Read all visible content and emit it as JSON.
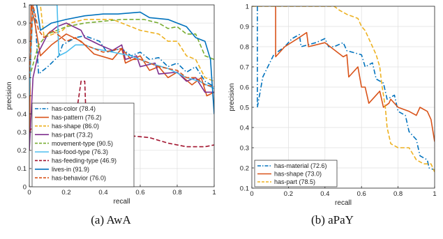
{
  "colors": {
    "blue": "#0072bd",
    "orange": "#d95319",
    "yellow": "#edb120",
    "purple": "#7e2f8e",
    "green": "#77ac30",
    "cyan": "#4dbeee",
    "maroon": "#a2142f",
    "grid": "#dfdfdf",
    "axis": "#262626"
  },
  "chart_data": [
    {
      "id": "awa",
      "type": "line",
      "caption": "(a) AwA",
      "xlabel": "recall",
      "ylabel": "precision",
      "xlim": [
        0,
        1
      ],
      "ylim": [
        0,
        1
      ],
      "x_ticks": [
        0,
        0.2,
        0.4,
        0.6,
        0.8,
        1
      ],
      "y_ticks": [
        0,
        0.1,
        0.2,
        0.3,
        0.4,
        0.5,
        0.6,
        0.7,
        0.8,
        0.9,
        1
      ],
      "x_tick_labels": [
        "0",
        "0.2",
        "0.4",
        "0.6",
        "0.8",
        "1"
      ],
      "y_tick_labels": [
        "0",
        "0.1",
        "0.2",
        "0.3",
        "0.4",
        "0.5",
        "0.6",
        "0.7",
        "0.8",
        "0.9",
        "1"
      ],
      "grid": true,
      "legend_position": "bottom-left",
      "series": [
        {
          "name": "has-color (78.4)",
          "color": "blue",
          "dash": "dashdot",
          "points": [
            [
              0,
              0.3
            ],
            [
              0.01,
              1
            ],
            [
              0.03,
              0.95
            ],
            [
              0.05,
              0.62
            ],
            [
              0.1,
              0.66
            ],
            [
              0.16,
              0.72
            ],
            [
              0.18,
              0.78
            ],
            [
              0.25,
              0.82
            ],
            [
              0.3,
              0.83
            ],
            [
              0.38,
              0.8
            ],
            [
              0.42,
              0.74
            ],
            [
              0.5,
              0.76
            ],
            [
              0.55,
              0.72
            ],
            [
              0.6,
              0.74
            ],
            [
              0.65,
              0.7
            ],
            [
              0.7,
              0.71
            ],
            [
              0.75,
              0.66
            ],
            [
              0.8,
              0.68
            ],
            [
              0.85,
              0.63
            ],
            [
              0.9,
              0.66
            ],
            [
              0.95,
              0.58
            ],
            [
              1.0,
              0.55
            ]
          ]
        },
        {
          "name": "has-pattern (76.2)",
          "color": "orange",
          "dash": "solid",
          "points": [
            [
              0,
              0.2
            ],
            [
              0.01,
              1
            ],
            [
              0.03,
              0.9
            ],
            [
              0.06,
              0.72
            ],
            [
              0.12,
              0.78
            ],
            [
              0.2,
              0.84
            ],
            [
              0.28,
              0.8
            ],
            [
              0.35,
              0.73
            ],
            [
              0.45,
              0.7
            ],
            [
              0.5,
              0.76
            ],
            [
              0.52,
              0.68
            ],
            [
              0.6,
              0.72
            ],
            [
              0.65,
              0.64
            ],
            [
              0.7,
              0.66
            ],
            [
              0.75,
              0.6
            ],
            [
              0.8,
              0.63
            ],
            [
              0.88,
              0.56
            ],
            [
              0.93,
              0.6
            ],
            [
              0.96,
              0.5
            ],
            [
              1.0,
              0.52
            ]
          ]
        },
        {
          "name": "has-shape (86.0)",
          "color": "yellow",
          "dash": "dashed",
          "points": [
            [
              0,
              0.5
            ],
            [
              0.02,
              1
            ],
            [
              0.06,
              1
            ],
            [
              0.08,
              0.82
            ],
            [
              0.18,
              0.86
            ],
            [
              0.22,
              0.9
            ],
            [
              0.3,
              0.92
            ],
            [
              0.45,
              0.92
            ],
            [
              0.55,
              0.88
            ],
            [
              0.6,
              0.86
            ],
            [
              0.7,
              0.84
            ],
            [
              0.75,
              0.8
            ],
            [
              0.8,
              0.8
            ],
            [
              0.85,
              0.72
            ],
            [
              0.9,
              0.7
            ],
            [
              0.95,
              0.6
            ],
            [
              1.0,
              0.58
            ]
          ]
        },
        {
          "name": "has-part (73.2)",
          "color": "purple",
          "dash": "solid",
          "points": [
            [
              0,
              0.2
            ],
            [
              0.02,
              0.6
            ],
            [
              0.05,
              0.74
            ],
            [
              0.1,
              0.84
            ],
            [
              0.15,
              0.88
            ],
            [
              0.2,
              0.9
            ],
            [
              0.28,
              0.86
            ],
            [
              0.3,
              0.82
            ],
            [
              0.38,
              0.78
            ],
            [
              0.45,
              0.75
            ],
            [
              0.5,
              0.78
            ],
            [
              0.52,
              0.7
            ],
            [
              0.58,
              0.72
            ],
            [
              0.6,
              0.66
            ],
            [
              0.68,
              0.68
            ],
            [
              0.7,
              0.62
            ],
            [
              0.8,
              0.63
            ],
            [
              0.85,
              0.58
            ],
            [
              0.9,
              0.6
            ],
            [
              0.95,
              0.52
            ],
            [
              1.0,
              0.52
            ]
          ]
        },
        {
          "name": "movement-type (90.5)",
          "color": "green",
          "dash": "dashed",
          "points": [
            [
              0,
              0.6
            ],
            [
              0.05,
              0.78
            ],
            [
              0.1,
              0.84
            ],
            [
              0.2,
              0.88
            ],
            [
              0.3,
              0.9
            ],
            [
              0.4,
              0.91
            ],
            [
              0.5,
              0.92
            ],
            [
              0.62,
              0.92
            ],
            [
              0.7,
              0.9
            ],
            [
              0.75,
              0.87
            ],
            [
              0.8,
              0.88
            ],
            [
              0.85,
              0.84
            ],
            [
              0.9,
              0.84
            ],
            [
              0.95,
              0.72
            ],
            [
              1.0,
              0.7
            ]
          ]
        },
        {
          "name": "has-food-type (76.3)",
          "color": "cyan",
          "dash": "solid",
          "points": [
            [
              0,
              0.5
            ],
            [
              0.02,
              1
            ],
            [
              0.15,
              1
            ],
            [
              0.16,
              0.72
            ],
            [
              0.2,
              0.74
            ],
            [
              0.25,
              0.78
            ],
            [
              0.3,
              0.78
            ],
            [
              0.35,
              0.76
            ],
            [
              0.45,
              0.74
            ],
            [
              0.55,
              0.72
            ],
            [
              0.65,
              0.68
            ],
            [
              0.75,
              0.65
            ],
            [
              0.85,
              0.6
            ],
            [
              0.92,
              0.58
            ],
            [
              1.0,
              0.54
            ]
          ]
        },
        {
          "name": "has-feeding-type (46.9)",
          "color": "maroon",
          "dash": "dashed",
          "points": [
            [
              0,
              0.3
            ],
            [
              0.05,
              0.4
            ],
            [
              0.1,
              0.46
            ],
            [
              0.12,
              0.38
            ],
            [
              0.2,
              0.4
            ],
            [
              0.26,
              0.44
            ],
            [
              0.28,
              0.58
            ],
            [
              0.3,
              0.58
            ],
            [
              0.31,
              0.28
            ],
            [
              0.45,
              0.28
            ],
            [
              0.55,
              0.28
            ],
            [
              0.65,
              0.27
            ],
            [
              0.75,
              0.24
            ],
            [
              0.85,
              0.22
            ],
            [
              0.95,
              0.22
            ],
            [
              1.0,
              0.23
            ]
          ]
        },
        {
          "name": "lives-in (91.9)",
          "color": "blue",
          "dash": "solid",
          "points": [
            [
              0,
              1
            ],
            [
              0.04,
              1
            ],
            [
              0.06,
              0.86
            ],
            [
              0.12,
              0.9
            ],
            [
              0.2,
              0.92
            ],
            [
              0.3,
              0.94
            ],
            [
              0.4,
              0.95
            ],
            [
              0.48,
              0.95
            ],
            [
              0.6,
              0.96
            ],
            [
              0.65,
              0.93
            ],
            [
              0.75,
              0.92
            ],
            [
              0.85,
              0.88
            ],
            [
              0.9,
              0.82
            ],
            [
              0.95,
              0.8
            ],
            [
              0.98,
              0.7
            ],
            [
              1.0,
              0.4
            ]
          ]
        },
        {
          "name": "has-behavior (76.0)",
          "color": "orange",
          "dash": "dashed",
          "points": [
            [
              0,
              0.6
            ],
            [
              0.02,
              1
            ],
            [
              0.05,
              0.86
            ],
            [
              0.08,
              0.82
            ],
            [
              0.12,
              0.86
            ],
            [
              0.15,
              0.84
            ],
            [
              0.2,
              0.8
            ],
            [
              0.25,
              0.82
            ],
            [
              0.3,
              0.78
            ],
            [
              0.4,
              0.74
            ],
            [
              0.5,
              0.76
            ],
            [
              0.55,
              0.7
            ],
            [
              0.6,
              0.7
            ],
            [
              0.7,
              0.66
            ],
            [
              0.8,
              0.64
            ],
            [
              0.85,
              0.6
            ],
            [
              0.9,
              0.6
            ],
            [
              0.95,
              0.56
            ],
            [
              1.0,
              0.55
            ]
          ]
        }
      ]
    },
    {
      "id": "apay",
      "type": "line",
      "caption": "(b) aPaY",
      "xlabel": "recall",
      "ylabel": "precision",
      "xlim": [
        0,
        1
      ],
      "ylim": [
        0.1,
        1
      ],
      "x_ticks": [
        0,
        0.2,
        0.4,
        0.6,
        0.8,
        1
      ],
      "y_ticks": [
        0.1,
        0.2,
        0.3,
        0.4,
        0.5,
        0.6,
        0.7,
        0.8,
        0.9,
        1
      ],
      "x_tick_labels": [
        "0",
        "0.2",
        "0.4",
        "0.6",
        "0.8",
        "1"
      ],
      "y_tick_labels": [
        "0.1",
        "0.2",
        "0.3",
        "0.4",
        "0.5",
        "0.6",
        "0.7",
        "0.8",
        "0.9",
        "1"
      ],
      "grid": true,
      "legend_position": "bottom-left",
      "series": [
        {
          "name": "has-material (72.6)",
          "color": "blue",
          "dash": "dashdot",
          "points": [
            [
              0.03,
              1
            ],
            [
              0.03,
              0.5
            ],
            [
              0.06,
              0.65
            ],
            [
              0.12,
              0.76
            ],
            [
              0.18,
              0.8
            ],
            [
              0.22,
              0.84
            ],
            [
              0.26,
              0.86
            ],
            [
              0.27,
              0.8
            ],
            [
              0.35,
              0.82
            ],
            [
              0.4,
              0.84
            ],
            [
              0.42,
              0.8
            ],
            [
              0.45,
              0.8
            ],
            [
              0.5,
              0.82
            ],
            [
              0.52,
              0.78
            ],
            [
              0.6,
              0.76
            ],
            [
              0.62,
              0.7
            ],
            [
              0.66,
              0.72
            ],
            [
              0.68,
              0.64
            ],
            [
              0.72,
              0.62
            ],
            [
              0.74,
              0.54
            ],
            [
              0.78,
              0.56
            ],
            [
              0.8,
              0.48
            ],
            [
              0.84,
              0.46
            ],
            [
              0.86,
              0.38
            ],
            [
              0.9,
              0.34
            ],
            [
              0.92,
              0.26
            ],
            [
              0.96,
              0.24
            ],
            [
              0.97,
              0.2
            ],
            [
              1.0,
              0.19
            ]
          ]
        },
        {
          "name": "has-shape (73.0)",
          "color": "orange",
          "dash": "solid",
          "points": [
            [
              0.13,
              1
            ],
            [
              0.13,
              0.75
            ],
            [
              0.18,
              0.8
            ],
            [
              0.25,
              0.84
            ],
            [
              0.3,
              0.87
            ],
            [
              0.31,
              0.8
            ],
            [
              0.4,
              0.82
            ],
            [
              0.5,
              0.75
            ],
            [
              0.52,
              0.76
            ],
            [
              0.53,
              0.65
            ],
            [
              0.58,
              0.7
            ],
            [
              0.6,
              0.6
            ],
            [
              0.62,
              0.6
            ],
            [
              0.64,
              0.52
            ],
            [
              0.7,
              0.58
            ],
            [
              0.72,
              0.5
            ],
            [
              0.75,
              0.52
            ],
            [
              0.76,
              0.54
            ],
            [
              0.8,
              0.5
            ],
            [
              0.86,
              0.48
            ],
            [
              0.9,
              0.46
            ],
            [
              0.92,
              0.5
            ],
            [
              0.96,
              0.48
            ],
            [
              0.98,
              0.44
            ],
            [
              1.0,
              0.33
            ]
          ]
        },
        {
          "name": "has-part (78.5)",
          "color": "yellow",
          "dash": "dashed",
          "points": [
            [
              0,
              1
            ],
            [
              0.45,
              1
            ],
            [
              0.48,
              0.98
            ],
            [
              0.52,
              0.96
            ],
            [
              0.58,
              0.94
            ],
            [
              0.6,
              0.9
            ],
            [
              0.62,
              0.88
            ],
            [
              0.65,
              0.82
            ],
            [
              0.68,
              0.76
            ],
            [
              0.7,
              0.7
            ],
            [
              0.71,
              0.62
            ],
            [
              0.73,
              0.5
            ],
            [
              0.74,
              0.4
            ],
            [
              0.76,
              0.32
            ],
            [
              0.8,
              0.3
            ],
            [
              0.86,
              0.3
            ],
            [
              0.9,
              0.24
            ],
            [
              0.94,
              0.22
            ],
            [
              0.98,
              0.22
            ],
            [
              1.0,
              0.18
            ]
          ]
        }
      ]
    }
  ]
}
